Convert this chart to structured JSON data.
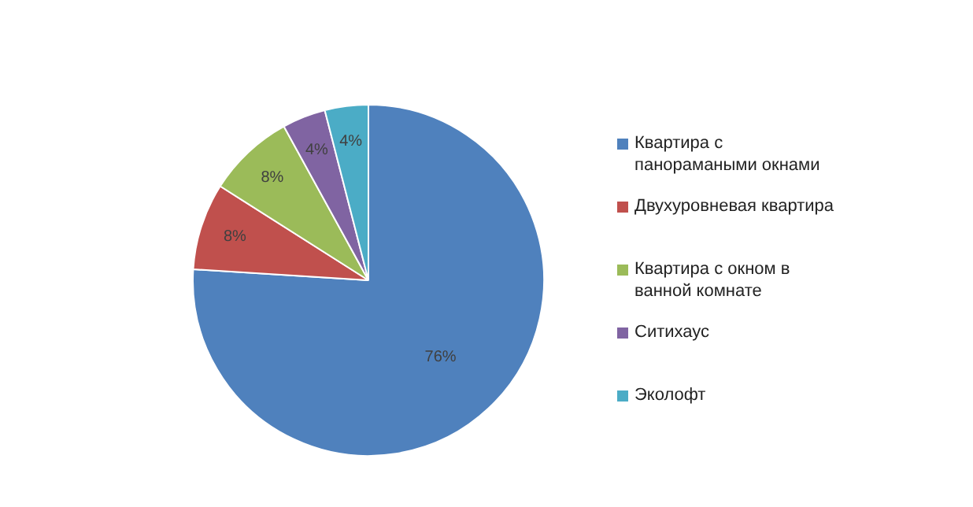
{
  "chart_data": {
    "type": "pie",
    "categories": [
      "Квартира с панорамаными окнами",
      "Двухуровневая квартира",
      "Квартира с окном в ванной комнате",
      "Ситихаус",
      "Эколофт"
    ],
    "values": [
      76,
      8,
      8,
      4,
      4
    ],
    "colors": [
      "#4f81bd",
      "#c0504d",
      "#9bbb59",
      "#8064a2",
      "#4bacc6"
    ],
    "value_labels": [
      "76%",
      "8%",
      "8%",
      "4%",
      "4%"
    ],
    "legend": "right"
  }
}
